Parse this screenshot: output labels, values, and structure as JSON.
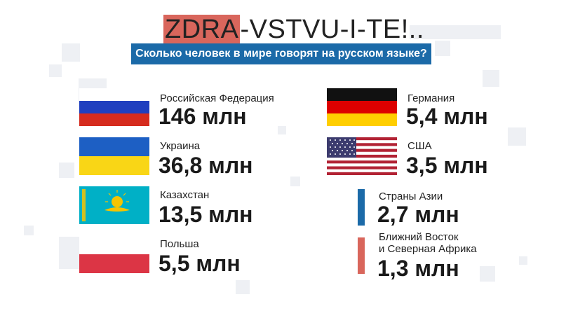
{
  "header": {
    "title_highlight": "ZDRA",
    "title_rest": "-VSTVU-I-TE!..",
    "subtitle": "Сколько человек в мире говорят на русском языке?"
  },
  "left_entries": [
    {
      "label": "Российская Федерация",
      "value": "146 млн",
      "flag": "russia-flag-icon"
    },
    {
      "label": "Украина",
      "value": "36,8 млн",
      "flag": "ukraine-flag-icon"
    },
    {
      "label": "Казахстан",
      "value": "13,5 млн",
      "flag": "kazakhstan-flag-icon"
    },
    {
      "label": "Польша",
      "value": "5,5 млн",
      "flag": "poland-flag-icon"
    }
  ],
  "right_entries": [
    {
      "label": "Германия",
      "value": "5,4 млн",
      "flag": "germany-flag-icon"
    },
    {
      "label": "США",
      "value": "3,5 млн",
      "flag": "usa-flag-icon"
    },
    {
      "label": "Страны Азии",
      "value": "2,7 млн",
      "marker_color": "#1b6aa8"
    },
    {
      "label_line1": "Ближний Восток",
      "label_line2": "и Северная Африка",
      "value": "1,3 млн",
      "marker_color": "#d9665c"
    }
  ],
  "colors": {
    "accent_red": "#d9665c",
    "accent_blue": "#1b6aa8"
  }
}
